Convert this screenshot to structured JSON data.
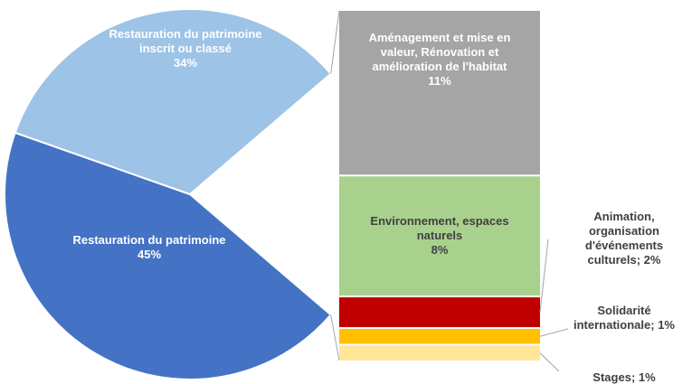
{
  "chart_data": {
    "type": "bar-of-pie",
    "pie": {
      "categories": [
        "Restauration du patrimoine",
        "Restauration du patrimoine inscrit ou classé"
      ],
      "values": [
        45,
        34
      ],
      "value_labels": [
        "45%",
        "34%"
      ],
      "colors": [
        "#4472c4",
        "#9dc3e6"
      ]
    },
    "bar": {
      "categories": [
        "Aménagement et mise en valeur, Rénovation et amélioration de l'habitat",
        "Environnement, espaces naturels",
        "Animation, organisation d'événements culturels",
        "Solidarité internationale",
        "Stages"
      ],
      "values": [
        11,
        8,
        2,
        1,
        1
      ],
      "value_labels": [
        "11%",
        "8%",
        "2%",
        "1%",
        "1%"
      ],
      "colors": [
        "#a5a5a5",
        "#a9d18e",
        "#c00000",
        "#ffc000",
        "#ffe699"
      ]
    },
    "label_separator": ";"
  }
}
